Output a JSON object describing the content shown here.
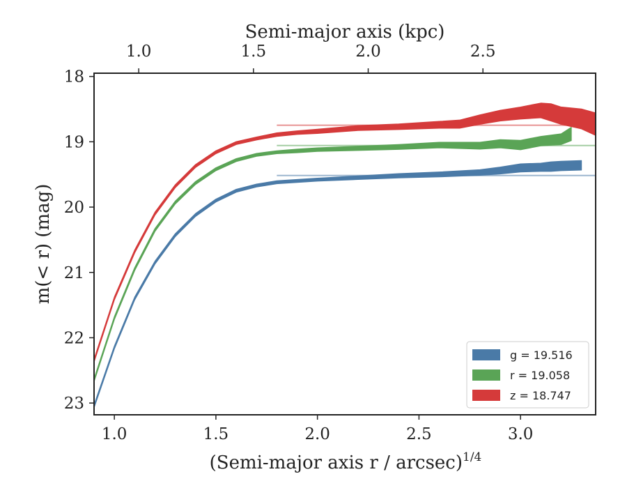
{
  "chart_data": {
    "type": "line",
    "x_axis": {
      "label": "(Semi-major axis r / arcsec)",
      "label_exponent": "1/4",
      "lim": [
        0.9,
        3.37
      ],
      "ticks": [
        1.0,
        1.5,
        2.0,
        2.5,
        3.0
      ],
      "tick_labels": [
        "1.0",
        "1.5",
        "2.0",
        "2.5",
        "3.0"
      ]
    },
    "top_axis": {
      "label": "Semi-major axis (kpc)",
      "ticks_at_x": [
        1.12,
        1.685,
        2.25,
        2.815
      ],
      "tick_labels": [
        "1.0",
        "1.5",
        "2.0",
        "2.5"
      ]
    },
    "y_axis": {
      "label": "m(< r) (mag)",
      "lim": [
        23.18,
        17.95
      ],
      "inverted": true,
      "ticks": [
        18,
        19,
        20,
        21,
        22,
        23
      ],
      "tick_labels": [
        "18",
        "19",
        "20",
        "21",
        "22",
        "23"
      ]
    },
    "legend": {
      "placement": "bottom-right",
      "entries": [
        "g = 19.516",
        "r = 19.058",
        "z = 18.747"
      ]
    },
    "series": [
      {
        "name": "g = 19.516",
        "color": "#4a7aa7",
        "asymptote": 19.516,
        "x": [
          0.9,
          1.0,
          1.1,
          1.2,
          1.3,
          1.4,
          1.5,
          1.6,
          1.7,
          1.8,
          1.9,
          2.0,
          2.2,
          2.4,
          2.6,
          2.8,
          2.9,
          3.0,
          3.1,
          3.15,
          3.2,
          3.3
        ],
        "y": [
          23.05,
          22.15,
          21.4,
          20.85,
          20.43,
          20.12,
          19.9,
          19.75,
          19.67,
          19.62,
          19.6,
          19.58,
          19.55,
          19.52,
          19.5,
          19.47,
          19.44,
          19.4,
          19.39,
          19.38,
          19.37,
          19.36
        ],
        "band_halfwidth": [
          0.01,
          0.01,
          0.01,
          0.01,
          0.01,
          0.01,
          0.01,
          0.01,
          0.01,
          0.01,
          0.01,
          0.01,
          0.015,
          0.02,
          0.025,
          0.03,
          0.04,
          0.05,
          0.05,
          0.06,
          0.06,
          0.06
        ]
      },
      {
        "name": "r = 19.058",
        "color": "#5aa456",
        "asymptote": 19.058,
        "x": [
          0.9,
          1.0,
          1.1,
          1.2,
          1.3,
          1.4,
          1.5,
          1.6,
          1.7,
          1.8,
          1.9,
          2.0,
          2.2,
          2.4,
          2.6,
          2.8,
          2.9,
          3.0,
          3.1,
          3.2,
          3.25
        ],
        "y": [
          22.65,
          21.7,
          20.95,
          20.35,
          19.93,
          19.63,
          19.42,
          19.28,
          19.2,
          19.16,
          19.14,
          19.12,
          19.1,
          19.08,
          19.05,
          19.06,
          19.03,
          19.05,
          18.99,
          18.96,
          18.88
        ],
        "band_halfwidth": [
          0.01,
          0.01,
          0.01,
          0.01,
          0.01,
          0.01,
          0.01,
          0.01,
          0.01,
          0.01,
          0.015,
          0.015,
          0.02,
          0.025,
          0.03,
          0.04,
          0.05,
          0.06,
          0.06,
          0.07,
          0.09
        ]
      },
      {
        "name": "z = 18.747",
        "color": "#d53a3a",
        "asymptote": 18.747,
        "x": [
          0.9,
          1.0,
          1.1,
          1.2,
          1.3,
          1.4,
          1.5,
          1.6,
          1.7,
          1.8,
          1.9,
          2.0,
          2.2,
          2.4,
          2.6,
          2.7,
          2.8,
          2.9,
          3.0,
          3.1,
          3.15,
          3.2,
          3.3,
          3.37
        ],
        "y": [
          22.35,
          21.4,
          20.68,
          20.1,
          19.68,
          19.37,
          19.16,
          19.02,
          18.95,
          18.89,
          18.86,
          18.84,
          18.79,
          18.77,
          18.74,
          18.73,
          18.66,
          18.6,
          18.56,
          18.52,
          18.55,
          18.6,
          18.65,
          18.73
        ],
        "band_halfwidth": [
          0.01,
          0.01,
          0.01,
          0.01,
          0.01,
          0.01,
          0.01,
          0.01,
          0.01,
          0.015,
          0.015,
          0.02,
          0.025,
          0.03,
          0.04,
          0.05,
          0.06,
          0.07,
          0.08,
          0.1,
          0.12,
          0.12,
          0.14,
          0.16
        ]
      }
    ]
  }
}
